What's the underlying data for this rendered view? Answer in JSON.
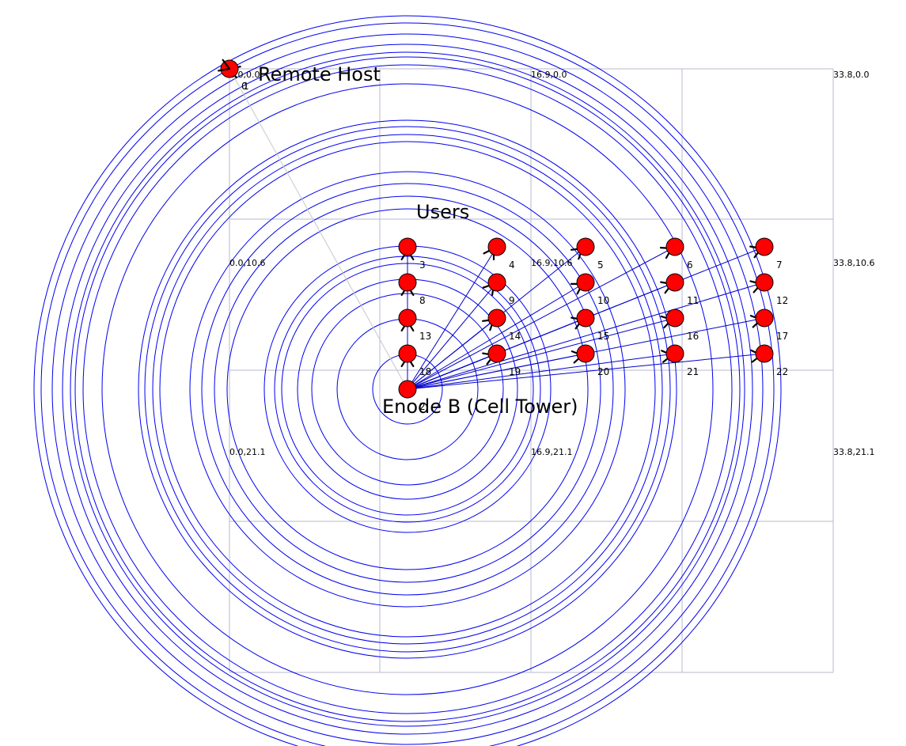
{
  "titles": {
    "remote_host": "Remote Host",
    "users": "Users",
    "enodeb": "Enode B (Cell Tower)"
  },
  "coord_labels": [
    "0.0,0.0",
    "16.9,0.0",
    "33.8,0.0",
    "0.0,10.6",
    "16.9,10.6",
    "33.8,10.6",
    "0.0,21.1",
    "16.9,21.1",
    "33.8,21.1"
  ],
  "nodes": {
    "remote_host": {
      "id": "0",
      "id2": "1"
    },
    "enodeb": {
      "id": "2"
    },
    "users": [
      {
        "id": "3",
        "col": 0,
        "row": 0
      },
      {
        "id": "4",
        "col": 1,
        "row": 0
      },
      {
        "id": "5",
        "col": 2,
        "row": 0
      },
      {
        "id": "6",
        "col": 3,
        "row": 0
      },
      {
        "id": "7",
        "col": 4,
        "row": 0
      },
      {
        "id": "8",
        "col": 0,
        "row": 1
      },
      {
        "id": "9",
        "col": 1,
        "row": 1
      },
      {
        "id": "10",
        "col": 2,
        "row": 1
      },
      {
        "id": "11",
        "col": 3,
        "row": 1
      },
      {
        "id": "12",
        "col": 4,
        "row": 1
      },
      {
        "id": "13",
        "col": 0,
        "row": 2
      },
      {
        "id": "14",
        "col": 1,
        "row": 2
      },
      {
        "id": "15",
        "col": 2,
        "row": 2
      },
      {
        "id": "16",
        "col": 3,
        "row": 2
      },
      {
        "id": "17",
        "col": 4,
        "row": 2
      },
      {
        "id": "18",
        "col": 0,
        "row": 3
      },
      {
        "id": "19",
        "col": 1,
        "row": 3
      },
      {
        "id": "20",
        "col": 2,
        "row": 3
      },
      {
        "id": "21",
        "col": 3,
        "row": 3
      },
      {
        "id": "22",
        "col": 4,
        "row": 3
      }
    ]
  },
  "colors": {
    "node_fill": "#ff0000",
    "ring": "#0000ee",
    "link": "#0000cc",
    "grid": "#b8b8d0",
    "host_link": "#c8c8c8"
  }
}
